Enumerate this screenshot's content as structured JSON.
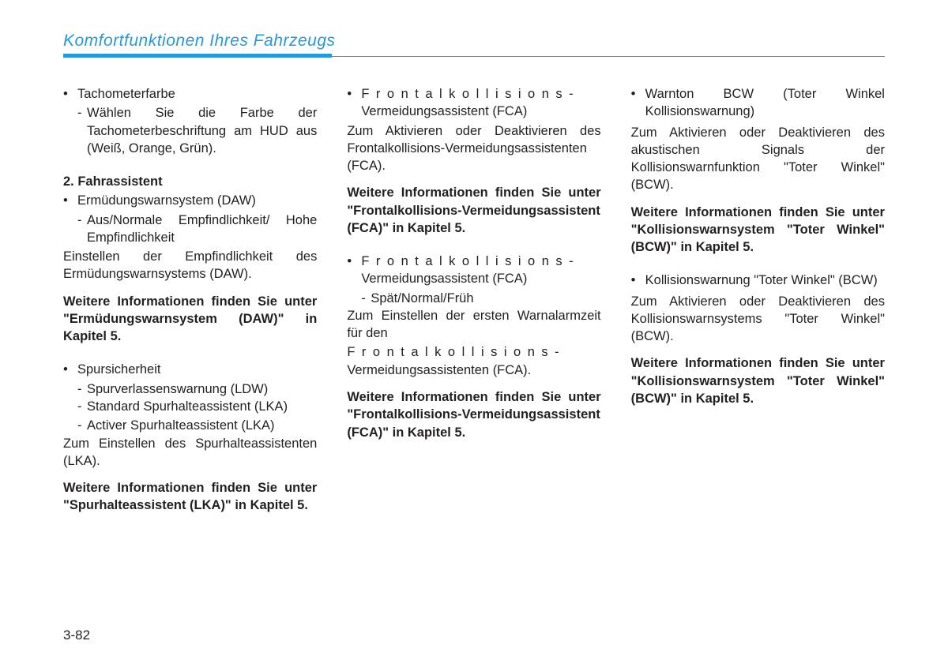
{
  "header": {
    "title": "Komfortfunktionen Ihres Fahrzeugs",
    "accent_color": "#2699d6"
  },
  "col1": {
    "item1_title": "Tachometerfarbe",
    "item1_sub": "Wählen Sie die Farbe der Tachometerbeschriftung am HUD aus (Weiß, Orange, Grün).",
    "heading2": "2. Fahrassistent",
    "item2_title": "Ermüdungswarnsystem (DAW)",
    "item2_sub": "Aus/Normale Empfindlichkeit/ Hohe Empfindlichkeit",
    "item2_desc": "Einstellen der Empfindlichkeit des Ermüdungswarnsystems (DAW).",
    "item2_bold": "Weitere Informationen finden Sie unter \"Ermüdungswarnsystem (DAW)\" in Kapitel 5.",
    "item3_title": "Spursicherheit",
    "item3_sub1": "Spurverlassenswarnung (LDW)",
    "item3_sub2": "Standard Spurhalteassistent (LKA)",
    "item3_sub3": "Activer Spurhalteassistent (LKA)",
    "item3_desc": "Zum Einstellen des Spurhalteassistenten (LKA).",
    "item3_bold": "Weitere Informationen finden Sie unter \"Spurhalteassistent (LKA)\" in Kapitel 5."
  },
  "col2": {
    "item1_spaced": "Frontalkollisions-",
    "item1_line2": "Vermeidungsassistent (FCA)",
    "item1_desc": "Zum Aktivieren oder Deaktivieren des Frontalkollisions-Vermeidungsassistenten (FCA).",
    "item1_bold": "Weitere Informationen finden Sie unter \"Frontalkollisions-Vermeidungsassistent (FCA)\" in Kapitel 5.",
    "item2_spaced": "Frontalkollisions-",
    "item2_line2": "Vermeidungsassistent (FCA)",
    "item2_sub": "Spät/Normal/Früh",
    "item2_desc1": "Zum Einstellen der ersten Warnalarmzeit für den",
    "item2_desc2_spaced": "Frontalkollisions-",
    "item2_desc3": "Vermeidungsassistenten (FCA).",
    "item2_bold": "Weitere Informationen finden Sie unter \"Frontalkollisions-Vermeidungsassistent (FCA)\" in Kapitel 5."
  },
  "col3": {
    "item1_title": "Warnton BCW (Toter Winkel Kollisionswarnung)",
    "item1_desc": "Zum Aktivieren oder Deaktivieren des akustischen Signals der Kollisionswarnfunktion \"Toter Winkel\" (BCW).",
    "item1_bold": "Weitere Informationen finden Sie unter \"Kollisionswarnsystem \"Toter Winkel\" (BCW)\" in Kapitel 5.",
    "item2_title": "Kollisionswarnung \"Toter Winkel\" (BCW)",
    "item2_desc": "Zum Aktivieren oder Deaktivieren des Kollisionswarnsystems \"Toter Winkel\" (BCW).",
    "item2_bold": "Weitere Informationen finden Sie unter \"Kollisionswarnsystem \"Toter Winkel\" (BCW)\" in Kapitel 5."
  },
  "page_number": "3-82"
}
